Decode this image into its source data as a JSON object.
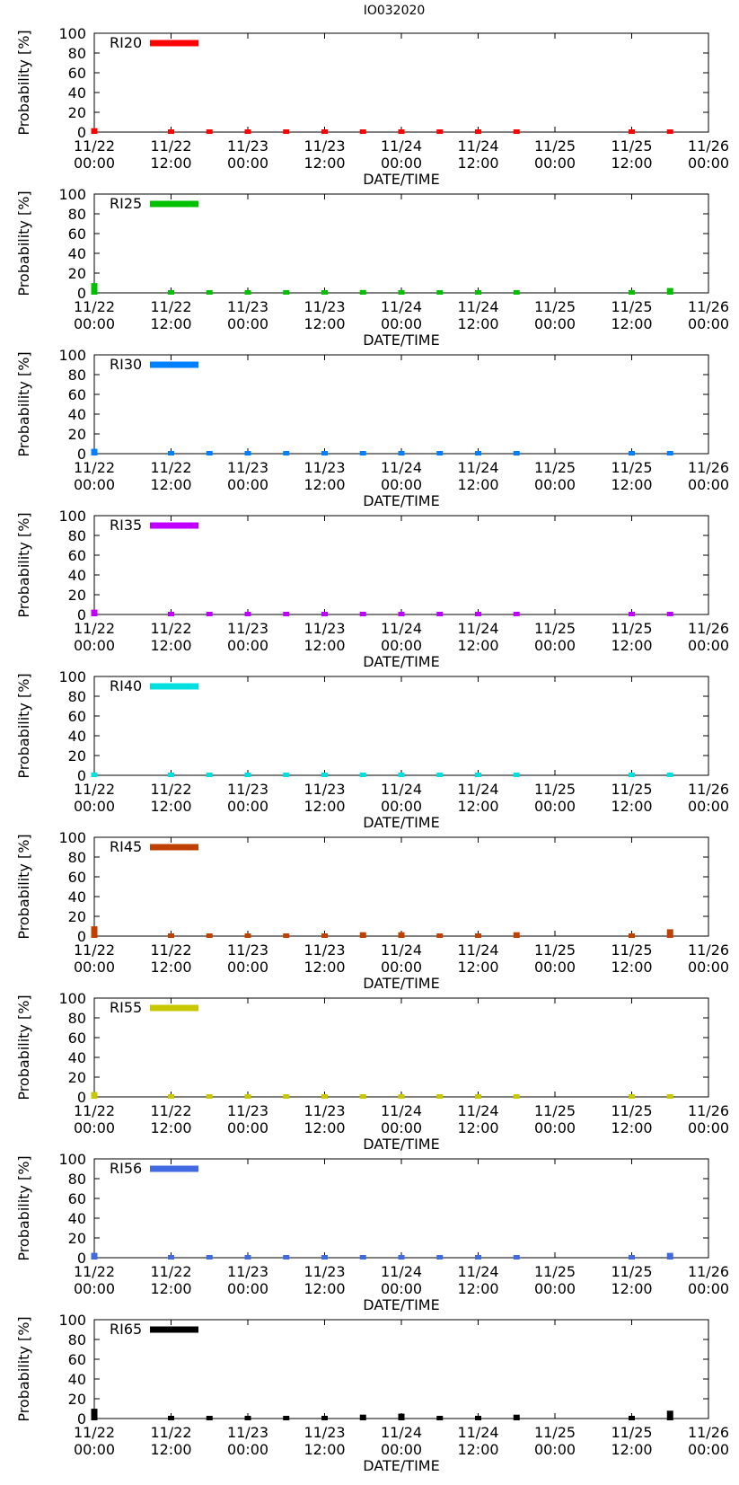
{
  "figure_title": "IO032020",
  "chart_data": [
    {
      "type": "bar",
      "series_name": "RI20",
      "color": "#ff0000",
      "xlabel": "DATE/TIME",
      "ylabel": "Probability [%]",
      "ylim": [
        0,
        100
      ],
      "yticks": [
        0,
        20,
        40,
        60,
        80,
        100
      ],
      "xlim_hours": [
        0,
        96
      ],
      "xticks": [
        {
          "hour": 0,
          "line1": "11/22",
          "line2": "00:00"
        },
        {
          "hour": 12,
          "line1": "11/22",
          "line2": "12:00"
        },
        {
          "hour": 24,
          "line1": "11/23",
          "line2": "00:00"
        },
        {
          "hour": 36,
          "line1": "11/23",
          "line2": "12:00"
        },
        {
          "hour": 48,
          "line1": "11/24",
          "line2": "00:00"
        },
        {
          "hour": 60,
          "line1": "11/24",
          "line2": "12:00"
        },
        {
          "hour": 72,
          "line1": "11/25",
          "line2": "00:00"
        },
        {
          "hour": 84,
          "line1": "11/25",
          "line2": "12:00"
        },
        {
          "hour": 96,
          "line1": "11/26",
          "line2": "00:00"
        }
      ],
      "x_hours": [
        0,
        12,
        18,
        24,
        30,
        36,
        42,
        48,
        54,
        60,
        66,
        84,
        90
      ],
      "values": [
        3,
        0,
        0,
        0,
        0,
        0,
        0,
        0,
        0,
        0,
        0,
        0,
        0
      ]
    },
    {
      "type": "bar",
      "series_name": "RI25",
      "color": "#00c000",
      "xlabel": "DATE/TIME",
      "ylabel": "Probability [%]",
      "ylim": [
        0,
        100
      ],
      "yticks": [
        0,
        20,
        40,
        60,
        80,
        100
      ],
      "xlim_hours": [
        0,
        96
      ],
      "xticks": [
        {
          "hour": 0,
          "line1": "11/22",
          "line2": "00:00"
        },
        {
          "hour": 12,
          "line1": "11/22",
          "line2": "12:00"
        },
        {
          "hour": 24,
          "line1": "11/23",
          "line2": "00:00"
        },
        {
          "hour": 36,
          "line1": "11/23",
          "line2": "12:00"
        },
        {
          "hour": 48,
          "line1": "11/24",
          "line2": "00:00"
        },
        {
          "hour": 60,
          "line1": "11/24",
          "line2": "12:00"
        },
        {
          "hour": 72,
          "line1": "11/25",
          "line2": "00:00"
        },
        {
          "hour": 84,
          "line1": "11/25",
          "line2": "12:00"
        },
        {
          "hour": 96,
          "line1": "11/26",
          "line2": "00:00"
        }
      ],
      "x_hours": [
        0,
        12,
        18,
        24,
        30,
        36,
        42,
        48,
        54,
        60,
        66,
        84,
        90
      ],
      "values": [
        9,
        0,
        0,
        0,
        0,
        0,
        2,
        1,
        0,
        0,
        0,
        0,
        4
      ]
    },
    {
      "type": "bar",
      "series_name": "RI30",
      "color": "#0080ff",
      "xlabel": "DATE/TIME",
      "ylabel": "Probability [%]",
      "ylim": [
        0,
        100
      ],
      "yticks": [
        0,
        20,
        40,
        60,
        80,
        100
      ],
      "xlim_hours": [
        0,
        96
      ],
      "xticks": [
        {
          "hour": 0,
          "line1": "11/22",
          "line2": "00:00"
        },
        {
          "hour": 12,
          "line1": "11/22",
          "line2": "12:00"
        },
        {
          "hour": 24,
          "line1": "11/23",
          "line2": "00:00"
        },
        {
          "hour": 36,
          "line1": "11/23",
          "line2": "12:00"
        },
        {
          "hour": 48,
          "line1": "11/24",
          "line2": "00:00"
        },
        {
          "hour": 60,
          "line1": "11/24",
          "line2": "12:00"
        },
        {
          "hour": 72,
          "line1": "11/25",
          "line2": "00:00"
        },
        {
          "hour": 84,
          "line1": "11/25",
          "line2": "12:00"
        },
        {
          "hour": 96,
          "line1": "11/26",
          "line2": "00:00"
        }
      ],
      "x_hours": [
        0,
        12,
        18,
        24,
        30,
        36,
        42,
        48,
        54,
        60,
        66,
        84,
        90
      ],
      "values": [
        4,
        0,
        0,
        0,
        0,
        0,
        0,
        0,
        0,
        0,
        0,
        0,
        1
      ]
    },
    {
      "type": "bar",
      "series_name": "RI35",
      "color": "#c000ff",
      "xlabel": "DATE/TIME",
      "ylabel": "Probability [%]",
      "ylim": [
        0,
        100
      ],
      "yticks": [
        0,
        20,
        40,
        60,
        80,
        100
      ],
      "xlim_hours": [
        0,
        96
      ],
      "xticks": [
        {
          "hour": 0,
          "line1": "11/22",
          "line2": "00:00"
        },
        {
          "hour": 12,
          "line1": "11/22",
          "line2": "12:00"
        },
        {
          "hour": 24,
          "line1": "11/23",
          "line2": "00:00"
        },
        {
          "hour": 36,
          "line1": "11/23",
          "line2": "12:00"
        },
        {
          "hour": 48,
          "line1": "11/24",
          "line2": "00:00"
        },
        {
          "hour": 60,
          "line1": "11/24",
          "line2": "12:00"
        },
        {
          "hour": 72,
          "line1": "11/25",
          "line2": "00:00"
        },
        {
          "hour": 84,
          "line1": "11/25",
          "line2": "12:00"
        },
        {
          "hour": 96,
          "line1": "11/26",
          "line2": "00:00"
        }
      ],
      "x_hours": [
        0,
        12,
        18,
        24,
        30,
        36,
        42,
        48,
        54,
        60,
        66,
        84,
        90
      ],
      "values": [
        4,
        0,
        0,
        0,
        0,
        0,
        0,
        0,
        0,
        0,
        0,
        0,
        1
      ]
    },
    {
      "type": "bar",
      "series_name": "RI40",
      "color": "#00e0e0",
      "xlabel": "DATE/TIME",
      "ylabel": "Probability [%]",
      "ylim": [
        0,
        100
      ],
      "yticks": [
        0,
        20,
        40,
        60,
        80,
        100
      ],
      "xlim_hours": [
        0,
        96
      ],
      "xticks": [
        {
          "hour": 0,
          "line1": "11/22",
          "line2": "00:00"
        },
        {
          "hour": 12,
          "line1": "11/22",
          "line2": "12:00"
        },
        {
          "hour": 24,
          "line1": "11/23",
          "line2": "00:00"
        },
        {
          "hour": 36,
          "line1": "11/23",
          "line2": "12:00"
        },
        {
          "hour": 48,
          "line1": "11/24",
          "line2": "00:00"
        },
        {
          "hour": 60,
          "line1": "11/24",
          "line2": "12:00"
        },
        {
          "hour": 72,
          "line1": "11/25",
          "line2": "00:00"
        },
        {
          "hour": 84,
          "line1": "11/25",
          "line2": "12:00"
        },
        {
          "hour": 96,
          "line1": "11/26",
          "line2": "00:00"
        }
      ],
      "x_hours": [
        0,
        12,
        18,
        24,
        30,
        36,
        42,
        48,
        54,
        60,
        66,
        84,
        90
      ],
      "values": [
        2,
        0,
        0,
        0,
        0,
        0,
        0,
        0,
        0,
        0,
        0,
        0,
        1
      ]
    },
    {
      "type": "bar",
      "series_name": "RI45",
      "color": "#c04000",
      "xlabel": "DATE/TIME",
      "ylabel": "Probability [%]",
      "ylim": [
        0,
        100
      ],
      "yticks": [
        0,
        20,
        40,
        60,
        80,
        100
      ],
      "xlim_hours": [
        0,
        96
      ],
      "xticks": [
        {
          "hour": 0,
          "line1": "11/22",
          "line2": "00:00"
        },
        {
          "hour": 12,
          "line1": "11/22",
          "line2": "12:00"
        },
        {
          "hour": 24,
          "line1": "11/23",
          "line2": "00:00"
        },
        {
          "hour": 36,
          "line1": "11/23",
          "line2": "12:00"
        },
        {
          "hour": 48,
          "line1": "11/24",
          "line2": "00:00"
        },
        {
          "hour": 60,
          "line1": "11/24",
          "line2": "12:00"
        },
        {
          "hour": 72,
          "line1": "11/25",
          "line2": "00:00"
        },
        {
          "hour": 84,
          "line1": "11/25",
          "line2": "12:00"
        },
        {
          "hour": 96,
          "line1": "11/26",
          "line2": "00:00"
        }
      ],
      "x_hours": [
        0,
        12,
        18,
        24,
        30,
        36,
        42,
        48,
        54,
        60,
        66,
        84,
        90
      ],
      "values": [
        9,
        0,
        0,
        0,
        0,
        0,
        3,
        3,
        0,
        0,
        3,
        1,
        6
      ]
    },
    {
      "type": "bar",
      "series_name": "RI55",
      "color": "#c8c800",
      "xlabel": "DATE/TIME",
      "ylabel": "Probability [%]",
      "ylim": [
        0,
        100
      ],
      "yticks": [
        0,
        20,
        40,
        60,
        80,
        100
      ],
      "xlim_hours": [
        0,
        96
      ],
      "xticks": [
        {
          "hour": 0,
          "line1": "11/22",
          "line2": "00:00"
        },
        {
          "hour": 12,
          "line1": "11/22",
          "line2": "12:00"
        },
        {
          "hour": 24,
          "line1": "11/23",
          "line2": "00:00"
        },
        {
          "hour": 36,
          "line1": "11/23",
          "line2": "12:00"
        },
        {
          "hour": 48,
          "line1": "11/24",
          "line2": "00:00"
        },
        {
          "hour": 60,
          "line1": "11/24",
          "line2": "12:00"
        },
        {
          "hour": 72,
          "line1": "11/25",
          "line2": "00:00"
        },
        {
          "hour": 84,
          "line1": "11/25",
          "line2": "12:00"
        },
        {
          "hour": 96,
          "line1": "11/26",
          "line2": "00:00"
        }
      ],
      "x_hours": [
        0,
        12,
        18,
        24,
        30,
        36,
        42,
        48,
        54,
        60,
        66,
        84,
        90
      ],
      "values": [
        4,
        0,
        0,
        0,
        0,
        0,
        0,
        1,
        0,
        0,
        0,
        0,
        1
      ]
    },
    {
      "type": "bar",
      "series_name": "RI56",
      "color": "#4169e1",
      "xlabel": "DATE/TIME",
      "ylabel": "Probability [%]",
      "ylim": [
        0,
        100
      ],
      "yticks": [
        0,
        20,
        40,
        60,
        80,
        100
      ],
      "xlim_hours": [
        0,
        96
      ],
      "xticks": [
        {
          "hour": 0,
          "line1": "11/22",
          "line2": "00:00"
        },
        {
          "hour": 12,
          "line1": "11/22",
          "line2": "12:00"
        },
        {
          "hour": 24,
          "line1": "11/23",
          "line2": "00:00"
        },
        {
          "hour": 36,
          "line1": "11/23",
          "line2": "12:00"
        },
        {
          "hour": 48,
          "line1": "11/24",
          "line2": "00:00"
        },
        {
          "hour": 60,
          "line1": "11/24",
          "line2": "12:00"
        },
        {
          "hour": 72,
          "line1": "11/25",
          "line2": "00:00"
        },
        {
          "hour": 84,
          "line1": "11/25",
          "line2": "12:00"
        },
        {
          "hour": 96,
          "line1": "11/26",
          "line2": "00:00"
        }
      ],
      "x_hours": [
        0,
        12,
        18,
        24,
        30,
        36,
        42,
        48,
        54,
        60,
        66,
        84,
        90
      ],
      "values": [
        4,
        0,
        0,
        0,
        0,
        0,
        1,
        1,
        0,
        0,
        1,
        0,
        4
      ]
    },
    {
      "type": "bar",
      "series_name": "RI65",
      "color": "#000000",
      "xlabel": "DATE/TIME",
      "ylabel": "Probability [%]",
      "ylim": [
        0,
        100
      ],
      "yticks": [
        0,
        20,
        40,
        60,
        80,
        100
      ],
      "xlim_hours": [
        0,
        96
      ],
      "xticks": [
        {
          "hour": 0,
          "line1": "11/22",
          "line2": "00:00"
        },
        {
          "hour": 12,
          "line1": "11/22",
          "line2": "12:00"
        },
        {
          "hour": 24,
          "line1": "11/23",
          "line2": "00:00"
        },
        {
          "hour": 36,
          "line1": "11/23",
          "line2": "12:00"
        },
        {
          "hour": 48,
          "line1": "11/24",
          "line2": "00:00"
        },
        {
          "hour": 60,
          "line1": "11/24",
          "line2": "12:00"
        },
        {
          "hour": 72,
          "line1": "11/25",
          "line2": "00:00"
        },
        {
          "hour": 84,
          "line1": "11/25",
          "line2": "12:00"
        },
        {
          "hour": 96,
          "line1": "11/26",
          "line2": "00:00"
        }
      ],
      "x_hours": [
        0,
        12,
        18,
        24,
        30,
        36,
        42,
        48,
        54,
        60,
        66,
        84,
        90
      ],
      "values": [
        9,
        0,
        0,
        0,
        0,
        0,
        3,
        4,
        0,
        0,
        3,
        1,
        7
      ]
    }
  ]
}
